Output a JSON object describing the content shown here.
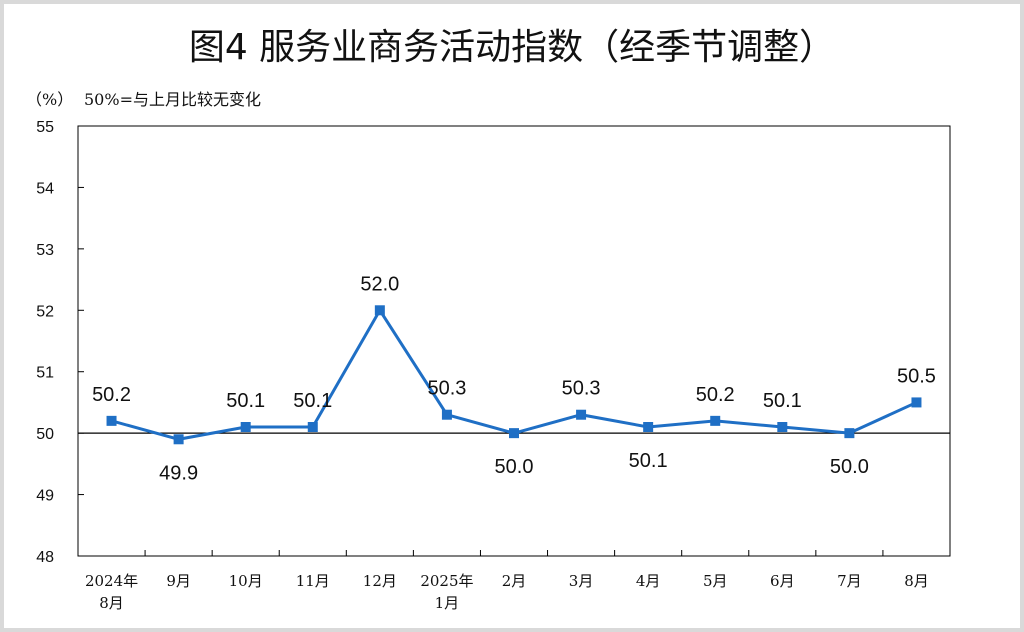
{
  "title": "图4 服务业商务活动指数（经季节调整）",
  "unit_label": "（%）",
  "note": "50%=与上月比较无变化",
  "chart_data": {
    "type": "line",
    "title": "图4 服务业商务活动指数（经季节调整）",
    "xlabel": "",
    "ylabel": "",
    "ylim": [
      48,
      55
    ],
    "yticks": [
      48,
      49,
      50,
      51,
      52,
      53,
      54,
      55
    ],
    "reference_line": 50,
    "categories": [
      [
        "2024年",
        "8月"
      ],
      [
        "9月"
      ],
      [
        "10月"
      ],
      [
        "11月"
      ],
      [
        "12月"
      ],
      [
        "2025年",
        "1月"
      ],
      [
        "2月"
      ],
      [
        "3月"
      ],
      [
        "4月"
      ],
      [
        "5月"
      ],
      [
        "6月"
      ],
      [
        "7月"
      ],
      [
        "8月"
      ]
    ],
    "series": [
      {
        "values": [
          50.2,
          49.9,
          50.1,
          50.1,
          52.0,
          50.3,
          50.0,
          50.3,
          50.1,
          50.2,
          50.1,
          50.0,
          50.5
        ],
        "labels": [
          "50.2",
          "49.9",
          "50.1",
          "50.1",
          "52.0",
          "50.3",
          "50.0",
          "50.3",
          "50.1",
          "50.2",
          "50.1",
          "50.0",
          "50.5"
        ],
        "color": "#1f6fc5"
      }
    ],
    "grid": false
  }
}
